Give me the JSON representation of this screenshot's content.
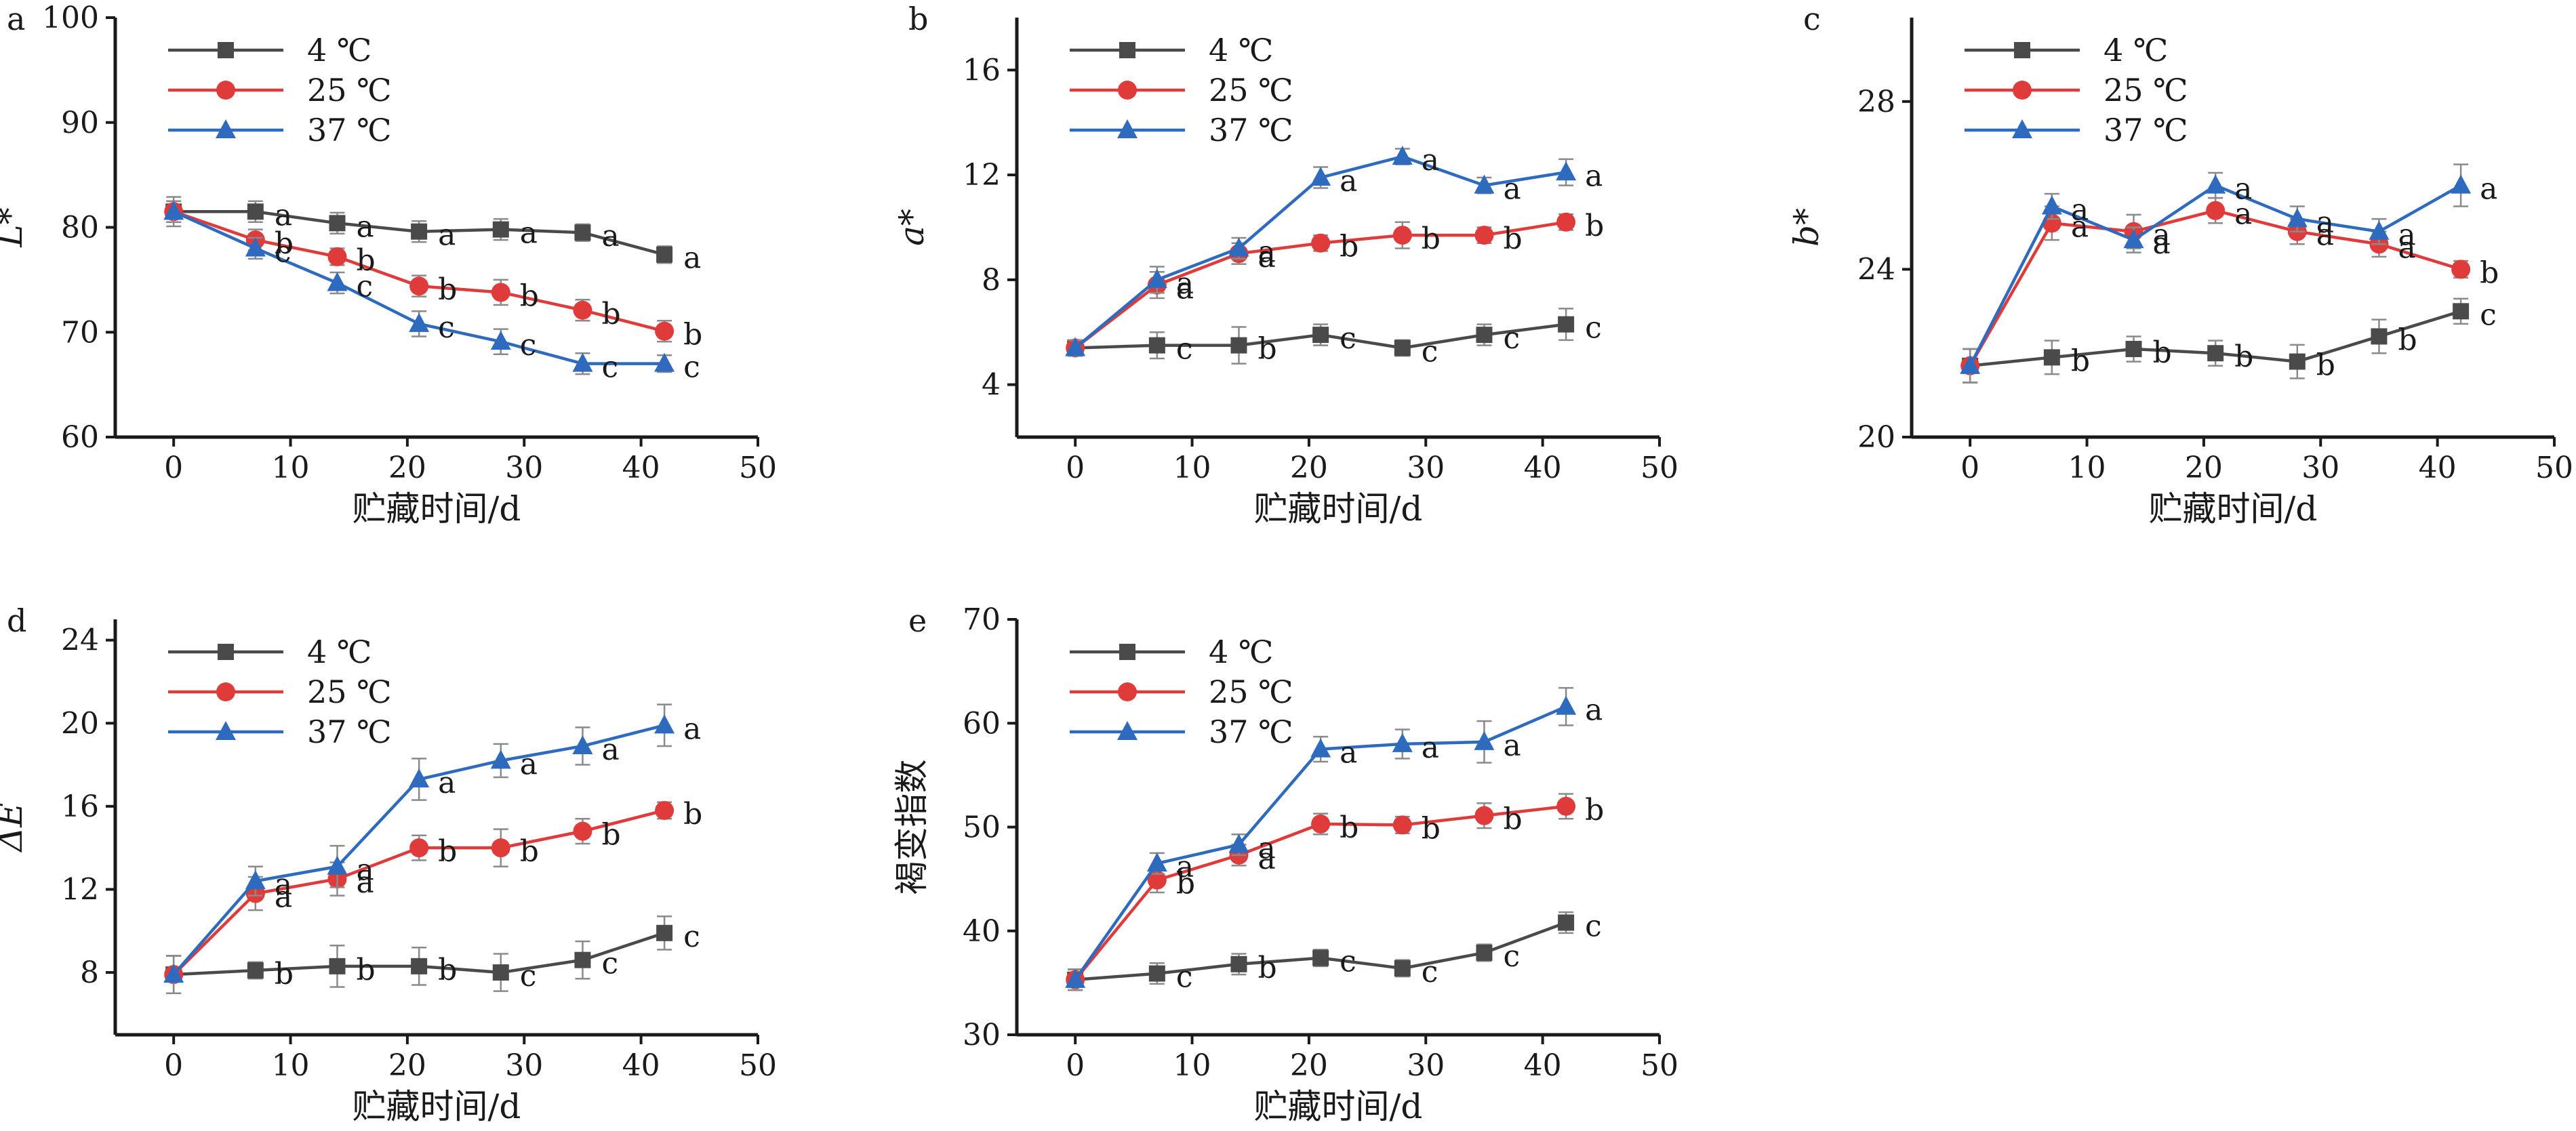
{
  "figure": {
    "shared_xlabel": "贮藏时间/d",
    "series_names": [
      "4 ℃",
      "25 ℃",
      "37 ℃"
    ],
    "series_colors": [
      "#4a4a4a",
      "#e03b3b",
      "#2e6bbf"
    ],
    "series_markers": [
      "square",
      "circle",
      "triangle"
    ]
  },
  "chart_data": [
    {
      "panel": "a",
      "type": "line",
      "ylabel": "L*",
      "xlabel": "贮藏时间/d",
      "x": [
        0,
        7,
        14,
        21,
        28,
        35,
        42
      ],
      "xlim": [
        -5,
        50
      ],
      "xticks": [
        0,
        10,
        20,
        30,
        40,
        50
      ],
      "ylim": [
        60,
        100
      ],
      "yticks": [
        60,
        70,
        80,
        90,
        100
      ],
      "legend": [
        "4 ℃",
        "25 ℃",
        "37 ℃"
      ],
      "legend_position": "top-left",
      "series": [
        {
          "name": "4 ℃",
          "values": [
            81.5,
            81.5,
            80.4,
            79.6,
            79.8,
            79.5,
            77.4
          ],
          "errors": [
            1.0,
            1.0,
            1.0,
            1.0,
            1.0,
            0.8,
            0.8
          ],
          "labels": [
            "",
            "a",
            "a",
            "a",
            "a",
            "a",
            "a"
          ]
        },
        {
          "name": "25 ℃",
          "values": [
            81.5,
            78.8,
            77.2,
            74.4,
            73.8,
            72.1,
            70.1
          ],
          "errors": [
            1.0,
            1.0,
            0.8,
            1.0,
            1.2,
            1.0,
            1.0
          ],
          "labels": [
            "",
            "b",
            "b",
            "b",
            "b",
            "b",
            "b"
          ]
        },
        {
          "name": "37 ℃",
          "values": [
            81.5,
            78.0,
            74.7,
            70.8,
            69.1,
            67.0,
            67.0
          ],
          "errors": [
            1.4,
            1.0,
            1.0,
            1.2,
            1.2,
            1.0,
            0.8
          ],
          "labels": [
            "",
            "c",
            "c",
            "c",
            "c",
            "c",
            "c"
          ]
        }
      ]
    },
    {
      "panel": "b",
      "type": "line",
      "ylabel": "a*",
      "xlabel": "贮藏时间/d",
      "x": [
        0,
        7,
        14,
        21,
        28,
        35,
        42
      ],
      "xlim": [
        -5,
        50
      ],
      "xticks": [
        0,
        10,
        20,
        30,
        40,
        50
      ],
      "ylim": [
        2,
        18
      ],
      "yticks": [
        4,
        8,
        12,
        16
      ],
      "legend": [
        "4 ℃",
        "25 ℃",
        "37 ℃"
      ],
      "legend_position": "top-left",
      "series": [
        {
          "name": "4 ℃",
          "values": [
            5.4,
            5.5,
            5.5,
            5.9,
            5.4,
            5.9,
            6.3
          ],
          "errors": [
            0.3,
            0.5,
            0.7,
            0.4,
            0.3,
            0.4,
            0.6
          ],
          "labels": [
            "",
            "c",
            "b",
            "c",
            "c",
            "c",
            "c"
          ]
        },
        {
          "name": "25 ℃",
          "values": [
            5.4,
            7.8,
            9.0,
            9.4,
            9.7,
            9.7,
            10.2
          ],
          "errors": [
            0.3,
            0.5,
            0.4,
            0.3,
            0.5,
            0.3,
            0.3
          ],
          "labels": [
            "",
            "a",
            "a",
            "b",
            "b",
            "b",
            "b"
          ]
        },
        {
          "name": "37 ℃",
          "values": [
            5.4,
            8.0,
            9.2,
            11.9,
            12.7,
            11.6,
            12.1
          ],
          "errors": [
            0.3,
            0.5,
            0.4,
            0.4,
            0.3,
            0.3,
            0.5
          ],
          "labels": [
            "",
            "a",
            "a",
            "a",
            "a",
            "a",
            "a"
          ]
        }
      ]
    },
    {
      "panel": "c",
      "type": "line",
      "ylabel": "b*",
      "xlabel": "贮藏时间/d",
      "x": [
        0,
        7,
        14,
        21,
        28,
        35,
        42
      ],
      "xlim": [
        -5,
        50
      ],
      "xticks": [
        0,
        10,
        20,
        30,
        40,
        50
      ],
      "ylim": [
        20,
        30
      ],
      "yticks": [
        20,
        24,
        28
      ],
      "legend": [
        "4 ℃",
        "25 ℃",
        "37 ℃"
      ],
      "legend_position": "top-left",
      "series": [
        {
          "name": "4 ℃",
          "values": [
            21.7,
            21.9,
            22.1,
            22.0,
            21.8,
            22.4,
            23.0
          ],
          "errors": [
            0.4,
            0.4,
            0.3,
            0.3,
            0.4,
            0.4,
            0.3
          ],
          "labels": [
            "",
            "b",
            "b",
            "b",
            "b",
            "b",
            "c"
          ]
        },
        {
          "name": "25 ℃",
          "values": [
            21.7,
            25.1,
            24.9,
            25.4,
            24.9,
            24.6,
            24.0
          ],
          "errors": [
            0.4,
            0.4,
            0.4,
            0.3,
            0.3,
            0.3,
            0.2
          ],
          "labels": [
            "",
            "a",
            "a",
            "a",
            "a",
            "a",
            "b"
          ]
        },
        {
          "name": "37 ℃",
          "values": [
            21.7,
            25.5,
            24.7,
            26.0,
            25.2,
            24.9,
            26.0
          ],
          "errors": [
            0.4,
            0.3,
            0.3,
            0.3,
            0.3,
            0.3,
            0.5
          ],
          "labels": [
            "",
            "a",
            "a",
            "a",
            "a",
            "a",
            "a"
          ]
        }
      ]
    },
    {
      "panel": "d",
      "type": "line",
      "ylabel": "ΔE",
      "xlabel": "贮藏时间/d",
      "x": [
        0,
        7,
        14,
        21,
        28,
        35,
        42
      ],
      "xlim": [
        -5,
        50
      ],
      "xticks": [
        0,
        10,
        20,
        30,
        40,
        50
      ],
      "ylim": [
        5,
        25
      ],
      "yticks": [
        8,
        12,
        16,
        20,
        24
      ],
      "legend": [
        "4 ℃",
        "25 ℃",
        "37 ℃"
      ],
      "legend_position": "top-left",
      "series": [
        {
          "name": "4 ℃",
          "values": [
            7.9,
            8.1,
            8.3,
            8.3,
            8.0,
            8.6,
            9.9
          ],
          "errors": [
            0.9,
            0.4,
            1.0,
            0.9,
            0.9,
            0.9,
            0.8
          ],
          "labels": [
            "",
            "b",
            "b",
            "b",
            "c",
            "c",
            "c"
          ]
        },
        {
          "name": "25 ℃",
          "values": [
            7.9,
            11.8,
            12.5,
            14.0,
            14.0,
            14.8,
            15.8
          ],
          "errors": [
            0.9,
            0.8,
            0.8,
            0.6,
            0.9,
            0.6,
            0.4
          ],
          "labels": [
            "",
            "a",
            "a",
            "b",
            "b",
            "b",
            "b"
          ]
        },
        {
          "name": "37 ℃",
          "values": [
            7.9,
            12.4,
            13.1,
            17.3,
            18.2,
            18.9,
            19.9
          ],
          "errors": [
            0.9,
            0.7,
            1.0,
            1.0,
            0.8,
            0.9,
            1.0
          ],
          "labels": [
            "",
            "a",
            "a",
            "a",
            "a",
            "a",
            "a"
          ]
        }
      ]
    },
    {
      "panel": "e",
      "type": "line",
      "ylabel": "褐变指数",
      "xlabel": "贮藏时间/d",
      "x": [
        0,
        7,
        14,
        21,
        28,
        35,
        42
      ],
      "xlim": [
        -5,
        50
      ],
      "xticks": [
        0,
        10,
        20,
        30,
        40,
        50
      ],
      "ylim": [
        30,
        70
      ],
      "yticks": [
        30,
        40,
        50,
        60,
        70
      ],
      "legend": [
        "4 ℃",
        "25 ℃",
        "37 ℃"
      ],
      "legend_position": "top-left",
      "series": [
        {
          "name": "4 ℃",
          "values": [
            35.3,
            35.9,
            36.8,
            37.4,
            36.4,
            37.9,
            40.8
          ],
          "errors": [
            1.0,
            1.0,
            1.0,
            0.8,
            0.8,
            0.8,
            1.0
          ],
          "labels": [
            "",
            "c",
            "b",
            "c",
            "c",
            "c",
            "c"
          ]
        },
        {
          "name": "25 ℃",
          "values": [
            35.3,
            44.9,
            47.3,
            50.3,
            50.2,
            51.1,
            52.0
          ],
          "errors": [
            1.0,
            1.2,
            1.0,
            1.0,
            0.8,
            1.2,
            1.2
          ],
          "labels": [
            "",
            "b",
            "a",
            "b",
            "b",
            "b",
            "b"
          ]
        },
        {
          "name": "37 ℃",
          "values": [
            35.3,
            46.5,
            48.3,
            57.5,
            58.0,
            58.2,
            61.6
          ],
          "errors": [
            1.0,
            1.0,
            1.0,
            1.2,
            1.4,
            2.0,
            1.8
          ],
          "labels": [
            "",
            "a",
            "a",
            "a",
            "a",
            "a",
            "a"
          ]
        }
      ]
    }
  ]
}
